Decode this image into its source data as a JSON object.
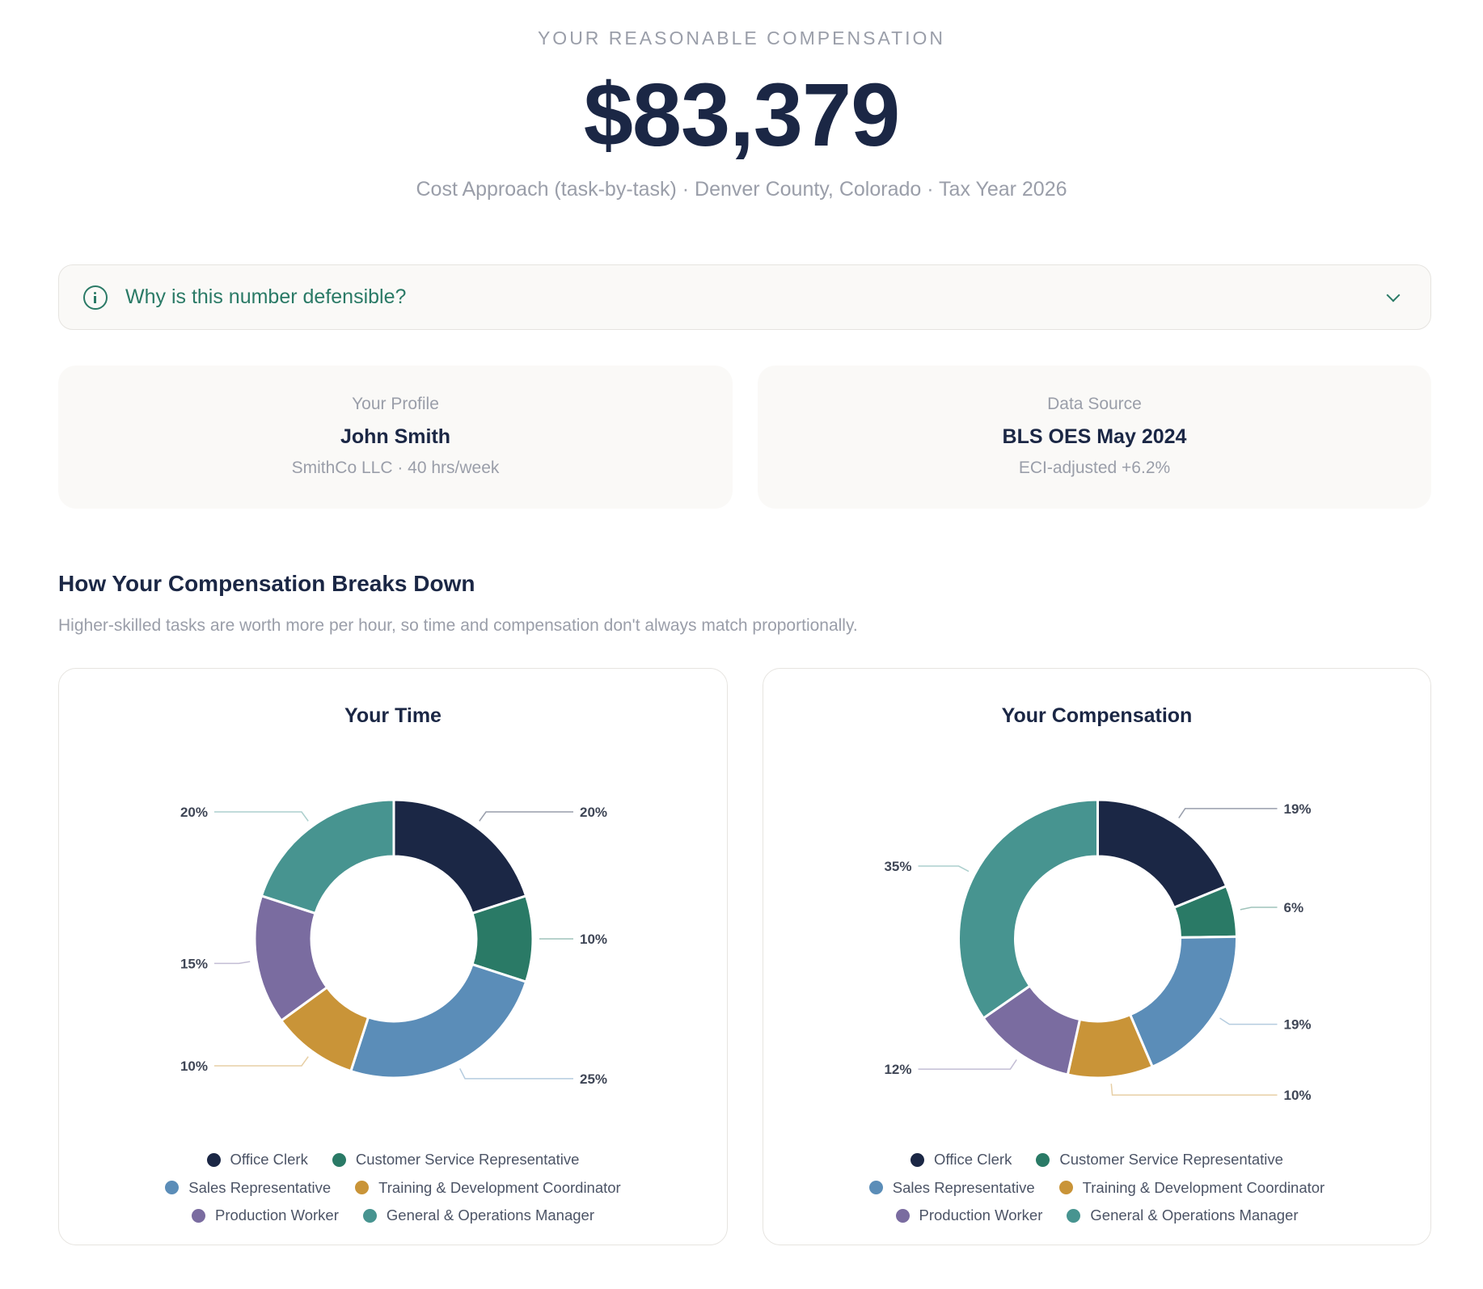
{
  "hero": {
    "label": "YOUR REASONABLE COMPENSATION",
    "amount": "$83,379",
    "subtitle": "Cost Approach (task-by-task) · Denver County, Colorado · Tax Year 2026"
  },
  "banner": {
    "icon": "info-icon",
    "label": "Why is this number defensible?",
    "chevron": "chevron-down-icon"
  },
  "profile_card": {
    "heading": "Your Profile",
    "name": "John Smith",
    "details": "SmithCo LLC · 40 hrs/week"
  },
  "source_card": {
    "heading": "Data Source",
    "name": "BLS OES May 2024",
    "details": "ECI-adjusted +6.2%"
  },
  "section": {
    "title": "How Your Compensation Breaks Down",
    "subtitle": "Higher-skilled tasks are worth more per hour, so time and compensation don't always match proportionally."
  },
  "colors": {
    "Office Clerk": "#1b2745",
    "Customer Service Representative": "#2a7a66",
    "Sales Representative": "#5b8db8",
    "Training & Development Coordinator": "#c99438",
    "Production Worker": "#7a6ca0",
    "General & Operations Manager": "#479490"
  },
  "legend": {
    "rows": [
      [
        {
          "label": "Office Clerk",
          "color": "#1b2745"
        },
        {
          "label": "Customer Service Representative",
          "color": "#2a7a66"
        }
      ],
      [
        {
          "label": "Sales Representative",
          "color": "#5b8db8"
        },
        {
          "label": "Training & Development Coordinator",
          "color": "#c99438"
        }
      ],
      [
        {
          "label": "Production Worker",
          "color": "#7a6ca0"
        },
        {
          "label": "General & Operations Manager",
          "color": "#479490"
        }
      ]
    ]
  },
  "chart_data": [
    {
      "type": "pie",
      "title": "Your Time",
      "categories": [
        "Office Clerk",
        "Customer Service Representative",
        "Sales Representative",
        "Training & Development Coordinator",
        "Production Worker",
        "General & Operations Manager"
      ],
      "values": [
        20,
        10,
        25,
        10,
        15,
        20
      ],
      "labels": [
        "20%",
        "10%",
        "25%",
        "10%",
        "15%",
        "20%"
      ],
      "unit": "%",
      "donut": true,
      "legend_position": "bottom"
    },
    {
      "type": "pie",
      "title": "Your Compensation",
      "categories": [
        "Office Clerk",
        "Customer Service Representative",
        "Sales Representative",
        "Training & Development Coordinator",
        "Production Worker",
        "General & Operations Manager"
      ],
      "values": [
        19,
        6,
        19,
        10,
        12,
        35
      ],
      "labels": [
        "19%",
        "6%",
        "19%",
        "10%",
        "12%",
        "35%"
      ],
      "unit": "%",
      "donut": true,
      "legend_position": "bottom"
    }
  ]
}
